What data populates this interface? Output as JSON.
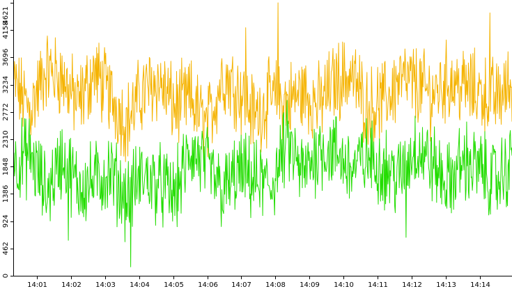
{
  "chart_data": {
    "type": "line",
    "title": "",
    "xlabel": "",
    "ylabel": "",
    "ylim": [
      0,
      4621
    ],
    "y_ticks": [
      0,
      462,
      924,
      1386,
      1848,
      2310,
      2772,
      3234,
      3696,
      4158,
      4621
    ],
    "x_range": [
      "14:00:20",
      "14:14:56"
    ],
    "x_ticks": [
      "14:01",
      "14:02",
      "14:03",
      "14:04",
      "14:05",
      "14:06",
      "14:07",
      "14:08",
      "14:09",
      "14:10",
      "14:11",
      "14:12",
      "14:13",
      "14:14"
    ],
    "grid": false,
    "legend": "none",
    "sample_count": 880,
    "series": [
      {
        "color": "#f5b300",
        "values": [
          3250,
          2800,
          3500,
          3350,
          2900,
          3450,
          3050,
          2600,
          3100,
          3300,
          2850,
          3000,
          2500,
          3400,
          3150,
          2700,
          3000,
          2950,
          3100,
          2900,
          3300,
          3400,
          2850,
          2950,
          3300,
          3250,
          3050,
          3300,
          3200,
          3100,
          3000,
          3250
        ]
      },
      {
        "color": "#22dd00",
        "values": [
          1900,
          2050,
          1400,
          2000,
          1500,
          1600,
          1750,
          1300,
          1700,
          1550,
          1350,
          2100,
          1850,
          1400,
          1750,
          1600,
          1500,
          2250,
          1700,
          2150,
          2100,
          1800,
          2000,
          1850,
          1650,
          2200,
          1900,
          1550,
          1950,
          1800,
          1600,
          1900
        ]
      }
    ],
    "spikes": [
      {
        "time": "14:07:08",
        "value": 4200
      },
      {
        "time": "14:08:04",
        "value": 4621
      },
      {
        "time": "14:14:17",
        "value": 4450
      },
      {
        "time": "14:03:45",
        "value": 150
      },
      {
        "time": "14:01:56",
        "value": 600
      },
      {
        "time": "14:11:50",
        "value": 650
      }
    ]
  }
}
